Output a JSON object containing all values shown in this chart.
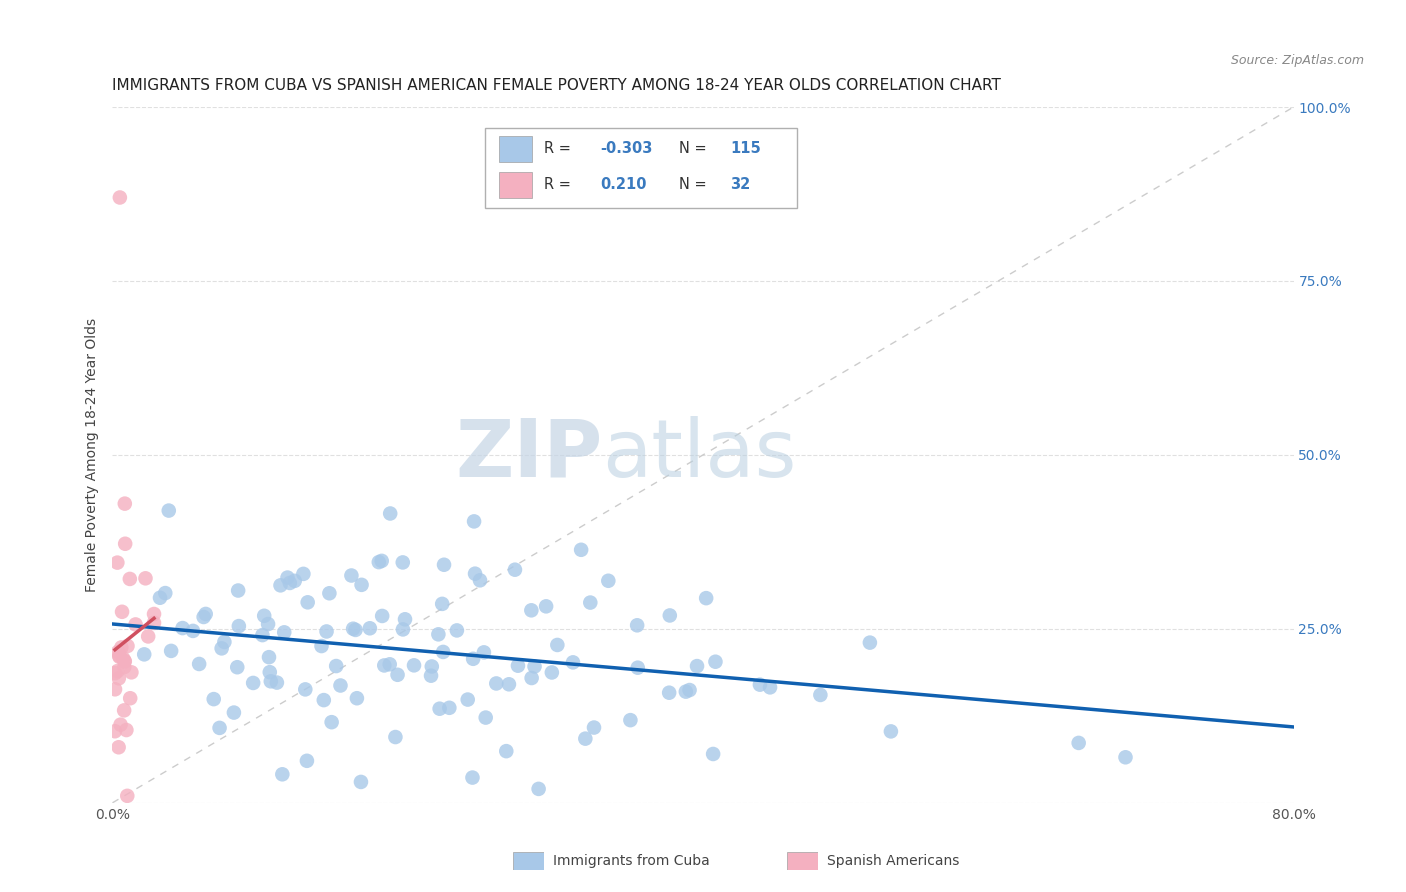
{
  "title": "IMMIGRANTS FROM CUBA VS SPANISH AMERICAN FEMALE POVERTY AMONG 18-24 YEAR OLDS CORRELATION CHART",
  "source": "Source: ZipAtlas.com",
  "ylabel": "Female Poverty Among 18-24 Year Olds",
  "xlim": [
    0,
    0.8
  ],
  "ylim": [
    0,
    1.0
  ],
  "xticks": [
    0.0,
    0.2,
    0.4,
    0.6,
    0.8
  ],
  "xticklabels": [
    "0.0%",
    "",
    "",
    "",
    "80.0%"
  ],
  "yticks": [
    0.0,
    0.25,
    0.5,
    0.75,
    1.0
  ],
  "blue_R": -0.303,
  "blue_N": 115,
  "pink_R": 0.21,
  "pink_N": 32,
  "blue_color": "#a8c8e8",
  "pink_color": "#f4b0c0",
  "blue_line_color": "#1060b0",
  "pink_line_color": "#d05060",
  "diagonal_color": "#cccccc",
  "watermark_zip": "ZIP",
  "watermark_atlas": "atlas",
  "legend_blue_label": "Immigrants from Cuba",
  "legend_pink_label": "Spanish Americans",
  "background_color": "#ffffff",
  "grid_color": "#e0e0e0",
  "title_fontsize": 11,
  "axis_label_fontsize": 10,
  "tick_fontsize": 10,
  "right_tick_color": "#3a7abf",
  "seed": 42
}
